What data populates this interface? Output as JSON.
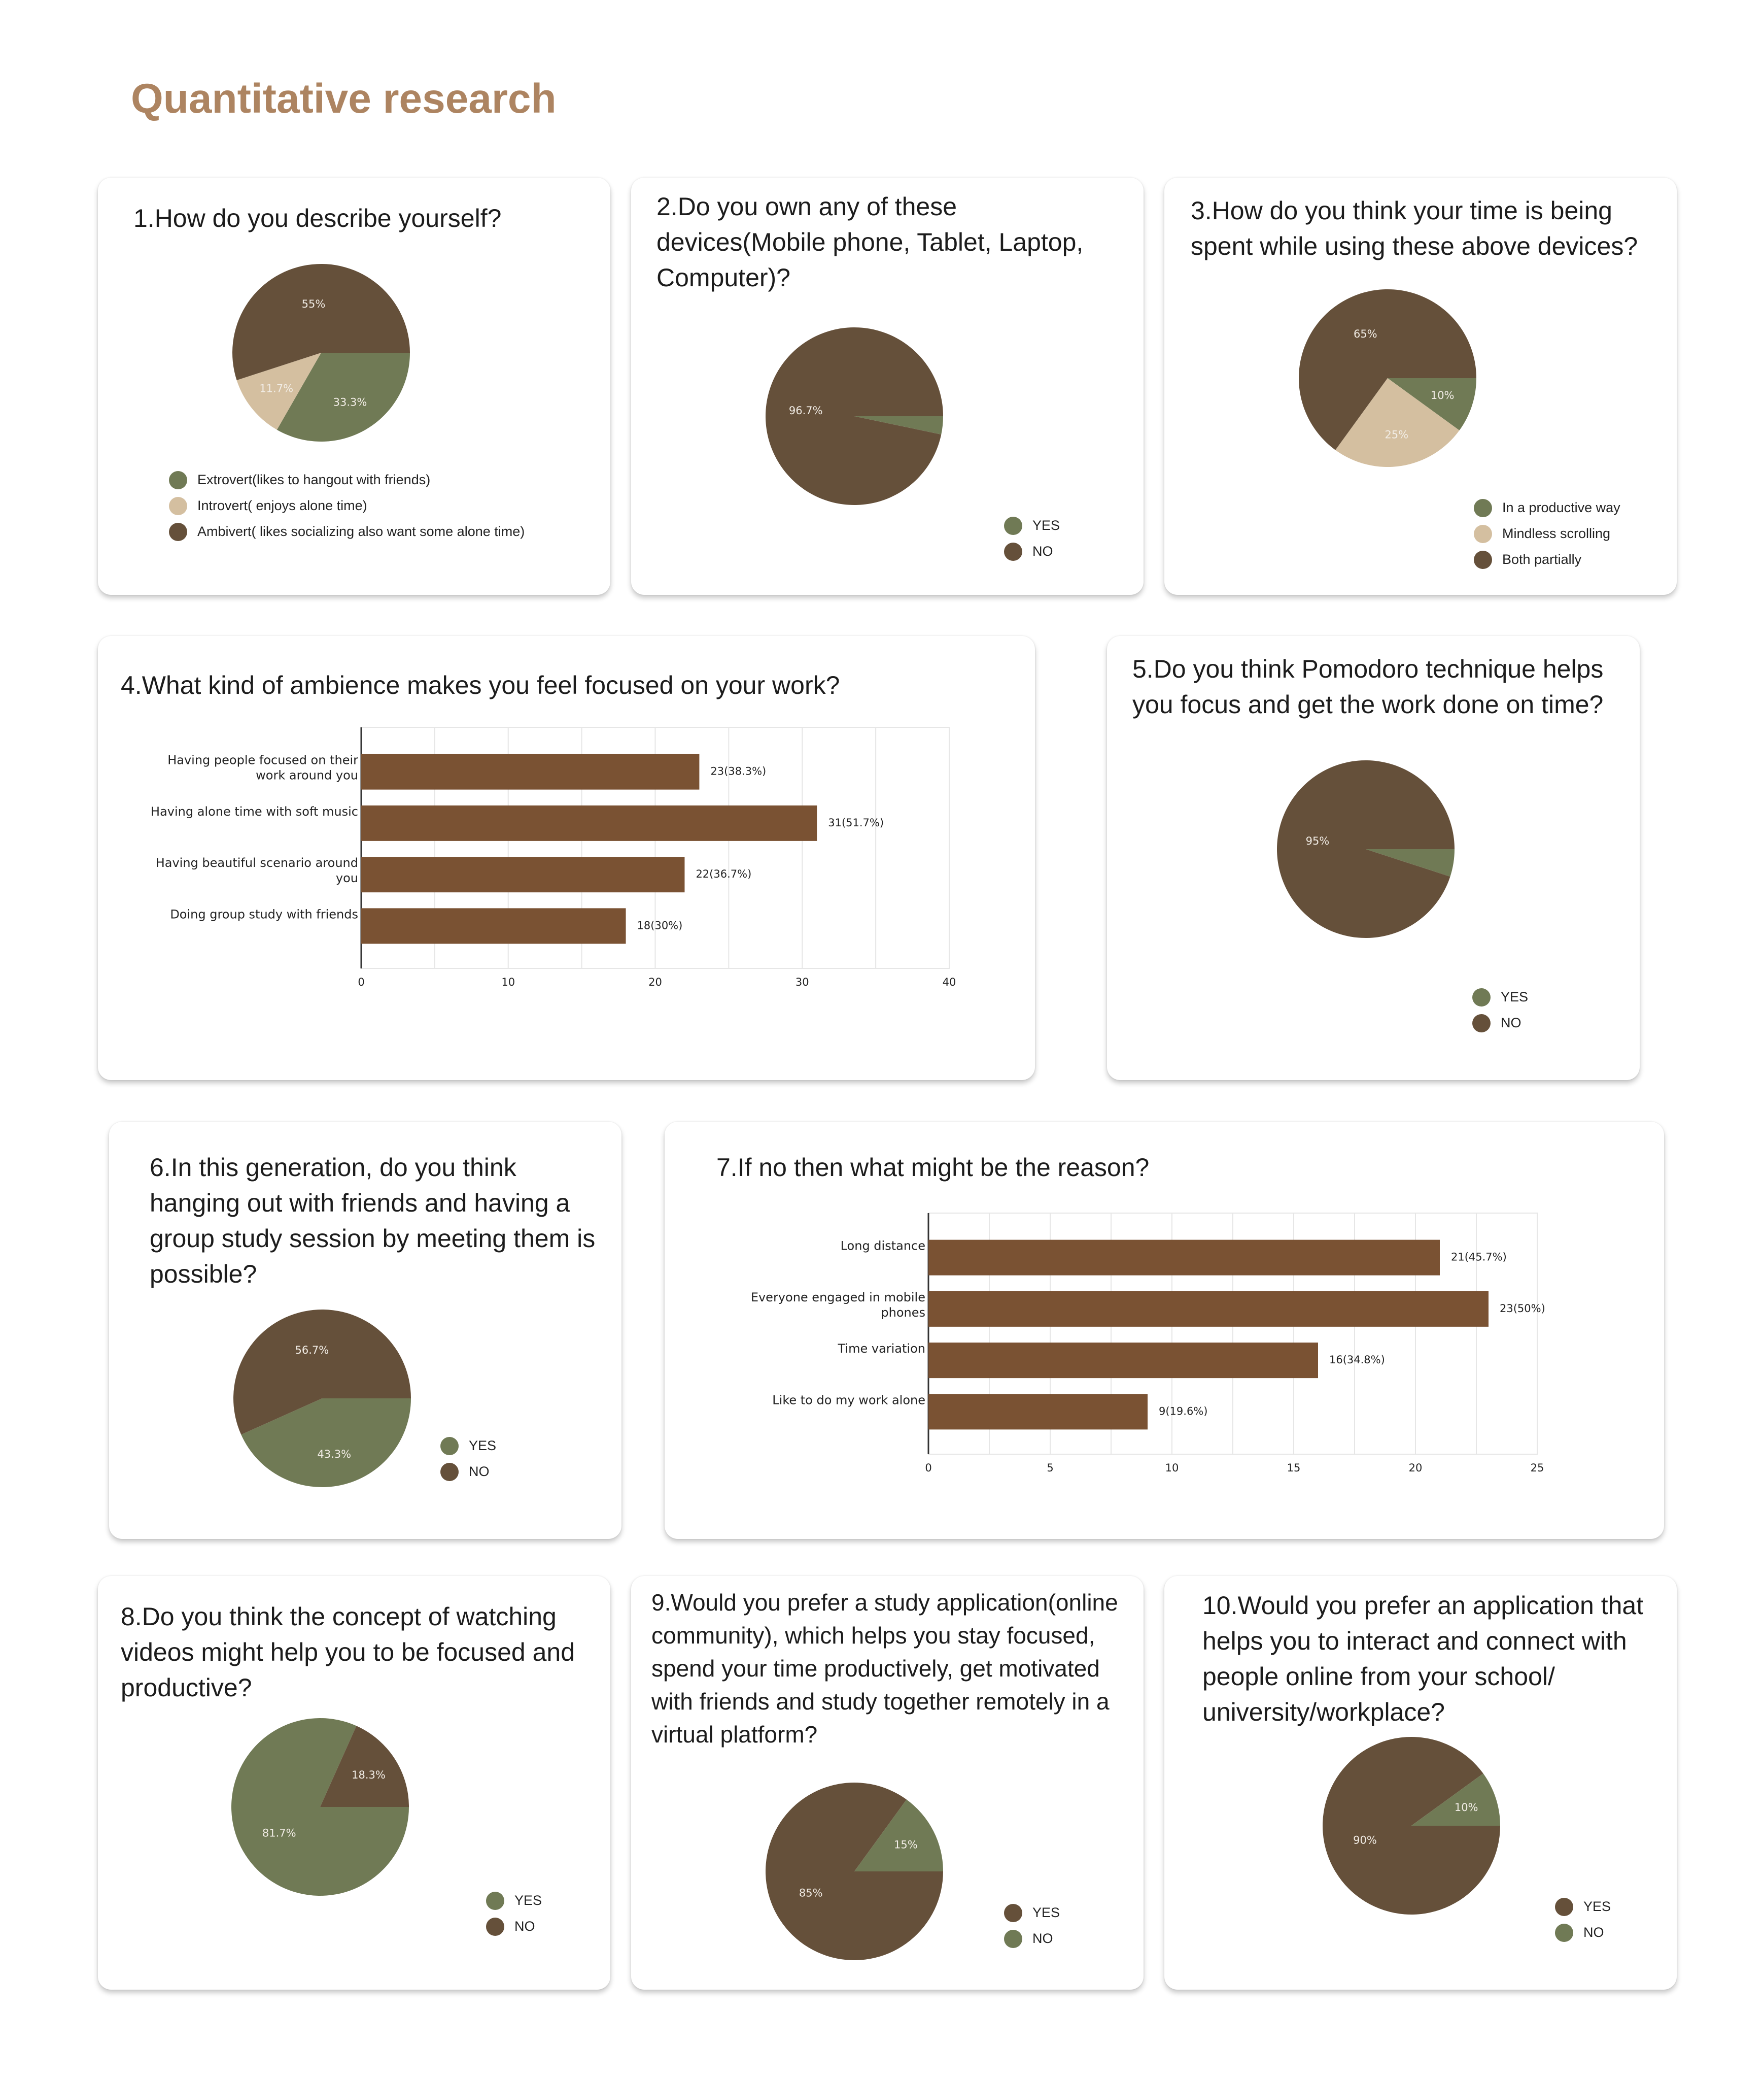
{
  "page_title": "Quantitative research",
  "colors": {
    "green": "#707a55",
    "beige": "#d4bfa0",
    "dark_brown": "#65503a",
    "bar_brown": "#7a5233",
    "title": "#ad8461"
  },
  "cards": {
    "q1": {
      "question": "1.How do you describe yourself?"
    },
    "q2": {
      "question": "2.Do you own any of these devices(Mobile phone, Tablet, Laptop, Computer)?"
    },
    "q3": {
      "question": "3.How do you think your time is being spent while using these above devices?"
    },
    "q4": {
      "question": "4.What kind of ambience makes you feel focused on your work?"
    },
    "q5": {
      "question": "5.Do you think Pomodoro technique helps you focus and get the work done on time?"
    },
    "q6": {
      "question": "6.In this generation, do you think hanging out with friends and having a group study session by meeting them is possible?"
    },
    "q7": {
      "question": "7.If no then what might be the reason?"
    },
    "q8": {
      "question": "8.Do you think the concept of watching videos might help you to be focused and productive?"
    },
    "q9": {
      "question": "9.Would you prefer a study application(online community), which helps you stay focused, spend your time productively, get motivated with friends and study together remotely in a virtual platform?"
    },
    "q10": {
      "question": "10.Would you prefer an application that helps you to interact and connect with people online from your school/ university/workplace?"
    }
  },
  "chart_data": [
    {
      "id": "q1",
      "type": "pie",
      "title": "1.How do you describe yourself?",
      "slices": [
        {
          "label": "Extrovert(likes to hangout with friends)",
          "value": 33.3,
          "display": "33.3%",
          "color": "#707a55"
        },
        {
          "label": "Introvert( enjoys alone time)",
          "value": 11.7,
          "display": "11.7%",
          "color": "#d4bfa0"
        },
        {
          "label": "Ambivert( likes socializing also want some alone time)",
          "value": 55,
          "display": "55%",
          "color": "#65503a"
        }
      ]
    },
    {
      "id": "q2",
      "type": "pie",
      "title": "2.Do you own any of these devices(Mobile phone, Tablet, Laptop, Computer)?",
      "slices": [
        {
          "label": "YES",
          "value": 3.3,
          "display": "",
          "color": "#707a55"
        },
        {
          "label": "NO",
          "value": 96.7,
          "display": "96.7%",
          "color": "#65503a"
        }
      ]
    },
    {
      "id": "q3",
      "type": "pie",
      "title": "3.How do you think your time is being spent while using these above devices?",
      "slices": [
        {
          "label": "In a productive way",
          "value": 10,
          "display": "10%",
          "color": "#707a55"
        },
        {
          "label": "Mindless scrolling",
          "value": 25,
          "display": "25%",
          "color": "#d4bfa0"
        },
        {
          "label": "Both partially",
          "value": 65,
          "display": "65%",
          "color": "#65503a"
        }
      ]
    },
    {
      "id": "q4",
      "type": "bar",
      "orientation": "horizontal",
      "title": "4.What kind of ambience makes you feel focused on your work?",
      "categories": [
        [
          "Having people focused on their",
          "work around you"
        ],
        [
          "Having alone time with soft music"
        ],
        [
          "Having  beautiful scenario around",
          "you"
        ],
        [
          "Doing group study with friends"
        ]
      ],
      "values": [
        23,
        31,
        22,
        18
      ],
      "labels": [
        "23(38.3%)",
        "31(51.7%)",
        "22(36.7%)",
        "18(30%)"
      ],
      "xlim": [
        0,
        40
      ],
      "ticks": [
        0,
        10,
        20,
        30,
        40
      ],
      "grid_step": 5,
      "grid": true
    },
    {
      "id": "q5",
      "type": "pie",
      "title": "5.Do you think Pomodoro technique helps you focus and get the work done on time?",
      "slices": [
        {
          "label": "YES",
          "value": 5,
          "display": "",
          "color": "#707a55"
        },
        {
          "label": "NO",
          "value": 95,
          "display": "95%",
          "color": "#65503a"
        }
      ]
    },
    {
      "id": "q6",
      "type": "pie",
      "title": "6.In this generation, do you think hanging out with friends and having a group study session by meeting them is possible?",
      "slices": [
        {
          "label": "YES",
          "value": 43.3,
          "display": "43.3%",
          "color": "#707a55"
        },
        {
          "label": "NO",
          "value": 56.7,
          "display": "56.7%",
          "color": "#65503a"
        }
      ]
    },
    {
      "id": "q7",
      "type": "bar",
      "orientation": "horizontal",
      "title": "7.If no then what might be the reason?",
      "categories": [
        [
          "Long distance"
        ],
        [
          "Everyone engaged in mobile",
          "phones"
        ],
        [
          "Time variation"
        ],
        [
          "Like to do my work alone"
        ]
      ],
      "values": [
        21,
        23,
        16,
        9
      ],
      "labels": [
        "21(45.7%)",
        "23(50%)",
        "16(34.8%)",
        "9(19.6%)"
      ],
      "xlim": [
        0,
        25
      ],
      "ticks": [
        0,
        5,
        10,
        15,
        20,
        25
      ],
      "grid_step": 2.5,
      "grid": true
    },
    {
      "id": "q8",
      "type": "pie",
      "title": "8.Do you think the concept of watching videos might help you to be focused and productive?",
      "slices": [
        {
          "label": "YES",
          "value": 81.7,
          "display": "81.7%",
          "color": "#707a55"
        },
        {
          "label": "NO",
          "value": 18.3,
          "display": "18.3%",
          "color": "#65503a"
        }
      ]
    },
    {
      "id": "q9",
      "type": "pie",
      "title": "9.Would you prefer a study application(online community), which helps you stay focused, spend your time productively, get motivated with friends and study together remotely in a virtual platform?",
      "slices": [
        {
          "label": "YES",
          "value": 85,
          "display": "85%",
          "color": "#65503a"
        },
        {
          "label": "NO",
          "value": 15,
          "display": "15%",
          "color": "#707a55"
        }
      ]
    },
    {
      "id": "q10",
      "type": "pie",
      "title": "10.Would you prefer an application that helps you to interact and connect with people online from your school/ university/workplace?",
      "slices": [
        {
          "label": "YES",
          "value": 90,
          "display": "90%",
          "color": "#65503a"
        },
        {
          "label": "NO",
          "value": 10,
          "display": "10%",
          "color": "#707a55"
        }
      ]
    }
  ]
}
